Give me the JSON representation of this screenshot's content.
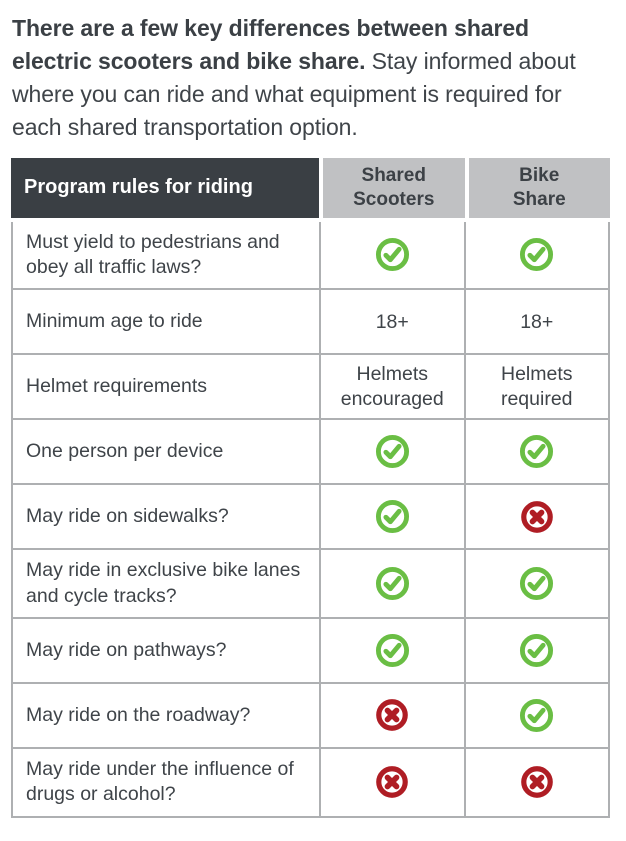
{
  "intro": {
    "lead": "There are a few key differences between shared electric scooters and bike share.",
    "rest": " Stay informed about where you can ride and what equipment is required for each shared transportation option."
  },
  "table": {
    "header": {
      "program_rules": "Program rules for riding",
      "shared_scooters": "Shared\nScooters",
      "bike_share": "Bike\nShare"
    },
    "rows": [
      {
        "label": "Must yield to pedestrians and obey all traffic laws?",
        "shared_scooters": "yes",
        "bike_share": "yes"
      },
      {
        "label": "Minimum age to ride",
        "shared_scooters": "18+",
        "bike_share": "18+"
      },
      {
        "label": "Helmet requirements",
        "shared_scooters": "Helmets encouraged",
        "bike_share": "Helmets required"
      },
      {
        "label": "One person per device",
        "shared_scooters": "yes",
        "bike_share": "yes"
      },
      {
        "label": "May ride on sidewalks?",
        "shared_scooters": "yes",
        "bike_share": "no"
      },
      {
        "label": "May ride in exclusive bike lanes and cycle tracks?",
        "shared_scooters": "yes",
        "bike_share": "yes"
      },
      {
        "label": "May ride on pathways?",
        "shared_scooters": "yes",
        "bike_share": "yes"
      },
      {
        "label": "May ride on the roadway?",
        "shared_scooters": "no",
        "bike_share": "yes"
      },
      {
        "label": "May ride under the influence of drugs or alcohol?",
        "shared_scooters": "no",
        "bike_share": "no"
      }
    ],
    "icons": {
      "yes": "check-circle-icon",
      "no": "x-circle-icon"
    }
  },
  "colors": {
    "header_dark_bg": "#3a3f44",
    "header_dark_text": "#ffffff",
    "header_light_bg": "#c0c1c3",
    "header_light_text": "#3c4146",
    "body_text": "#3f4449",
    "grid_line": "#aeb0b2",
    "check_green": "#6abe44",
    "cross_red": "#af1d24"
  }
}
